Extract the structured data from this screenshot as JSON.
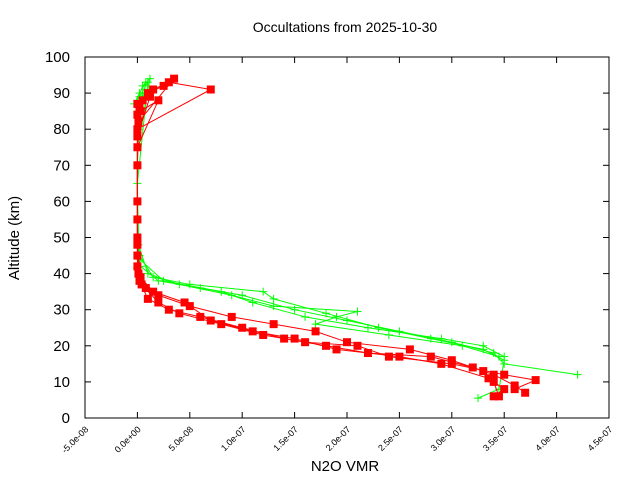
{
  "chart_data": {
    "type": "line",
    "title": "Occultations from 2025-10-30",
    "xlabel": "N2O VMR",
    "ylabel": "Altitude (km)",
    "xlim": [
      -5e-08,
      4.5e-07
    ],
    "ylim": [
      0,
      100
    ],
    "grid": false,
    "legend": "none",
    "x_tick_labels": [
      "-5.0e-08",
      "0.0e+00",
      "5.0e-08",
      "1.0e-07",
      "1.5e-07",
      "2.0e-07",
      "2.5e-07",
      "3.0e-07",
      "3.5e-07",
      "4.0e-07",
      "4.5e-07"
    ],
    "x_ticks": [
      -5e-08,
      0,
      5e-08,
      1e-07,
      1.5e-07,
      2e-07,
      2.5e-07,
      3e-07,
      3.5e-07,
      4e-07,
      4.5e-07
    ],
    "y_ticks": [
      0,
      10,
      20,
      30,
      40,
      50,
      60,
      70,
      80,
      90,
      100
    ],
    "y_tick_labels": [
      "0",
      "10",
      "20",
      "30",
      "40",
      "50",
      "60",
      "70",
      "80",
      "90",
      "100"
    ],
    "series": [
      {
        "color": "#00ff00",
        "marker": "plus",
        "profiles": [
          [
            [
              -3e-09,
              87
            ],
            [
              2e-09,
              90
            ],
            [
              8e-09,
              93
            ],
            [
              1e-09,
              80
            ],
            [
              0,
              70
            ],
            [
              0,
              60
            ],
            [
              0,
              50
            ],
            [
              3e-09,
              42
            ],
            [
              2e-08,
              38
            ],
            [
              6e-08,
              36
            ],
            [
              1e-07,
              34
            ],
            [
              1.5e-07,
              30
            ],
            [
              2e-07,
              27
            ],
            [
              2.5e-07,
              24
            ],
            [
              3e-07,
              21
            ],
            [
              3.4e-07,
              18
            ],
            [
              3.5e-07,
              15
            ],
            [
              4.2e-07,
              12
            ]
          ],
          [
            [
              0,
              88
            ],
            [
              5e-09,
              92
            ],
            [
              1.2e-08,
              94
            ],
            [
              0,
              75
            ],
            [
              0,
              55
            ],
            [
              2e-09,
              45
            ],
            [
              1.5e-08,
              39
            ],
            [
              5e-08,
              37
            ],
            [
              1.2e-07,
              35
            ],
            [
              1.3e-07,
              33
            ],
            [
              1.8e-07,
              29
            ],
            [
              2.3e-07,
              25
            ],
            [
              2.8e-07,
              22
            ],
            [
              3.3e-07,
              19
            ],
            [
              3.5e-07,
              16
            ],
            [
              3.45e-07,
              8
            ],
            [
              3.25e-07,
              5.5
            ]
          ],
          [
            [
              2e-09,
              89
            ],
            [
              1e-08,
              93
            ],
            [
              0,
              65
            ],
            [
              1e-09,
              48
            ],
            [
              1e-08,
              40
            ],
            [
              4e-08,
              37
            ],
            [
              9e-08,
              34
            ],
            [
              1.3e-07,
              31
            ],
            [
              2.1e-07,
              29.5
            ],
            [
              1.9e-07,
              28
            ],
            [
              1.7e-07,
              26
            ],
            [
              2.4e-07,
              23
            ],
            [
              3.1e-07,
              20
            ],
            [
              3.45e-07,
              17
            ]
          ],
          [
            [
              5e-09,
              90
            ],
            [
              0,
              85
            ],
            [
              0,
              60
            ],
            [
              2e-09,
              44
            ],
            [
              2.5e-08,
              38
            ],
            [
              8e-08,
              35
            ],
            [
              1.1e-07,
              32
            ],
            [
              1.6e-07,
              28
            ],
            [
              2.2e-07,
              25
            ],
            [
              2.9e-07,
              22
            ],
            [
              3.3e-07,
              20
            ],
            [
              3.5e-07,
              17
            ]
          ]
        ]
      },
      {
        "color": "#ff0000",
        "marker": "square",
        "profiles": [
          [
            [
              0,
              84
            ],
            [
              5e-09,
              88
            ],
            [
              1.5e-08,
              91
            ],
            [
              3e-08,
              93
            ],
            [
              7e-08,
              91
            ],
            [
              0,
              80
            ],
            [
              0,
              60
            ],
            [
              0,
              45
            ],
            [
              2e-09,
              38
            ],
            [
              1e-08,
              33
            ],
            [
              3e-08,
              30
            ],
            [
              6e-08,
              28
            ],
            [
              1e-07,
              25
            ],
            [
              1.4e-07,
              22
            ],
            [
              1.8e-07,
              20
            ],
            [
              2.2e-07,
              18
            ],
            [
              2.8e-07,
              17
            ],
            [
              3.2e-07,
              14
            ],
            [
              3.4e-07,
              12
            ],
            [
              3.6e-07,
              9
            ],
            [
              3.7e-07,
              7
            ]
          ],
          [
            [
              2e-09,
              86
            ],
            [
              1e-08,
              90
            ],
            [
              2.5e-08,
              92
            ],
            [
              3.5e-08,
              94
            ],
            [
              1e-09,
              82
            ],
            [
              0,
              70
            ],
            [
              0,
              50
            ],
            [
              1e-09,
              40
            ],
            [
              8e-09,
              36
            ],
            [
              2e-08,
              34
            ],
            [
              5e-08,
              31
            ],
            [
              9e-08,
              28
            ],
            [
              1.3e-07,
              26
            ],
            [
              1.7e-07,
              24
            ],
            [
              2e-07,
              21
            ],
            [
              2.6e-07,
              19
            ],
            [
              3e-07,
              16
            ],
            [
              3.3e-07,
              13
            ],
            [
              3.4e-07,
              10
            ],
            [
              3.45e-07,
              6
            ]
          ],
          [
            [
              0,
              87
            ],
            [
              1.2e-08,
              89
            ],
            [
              0,
              78
            ],
            [
              0,
              55
            ],
            [
              0,
              42
            ],
            [
              4e-09,
              37
            ],
            [
              2e-08,
              32
            ],
            [
              4e-08,
              29
            ],
            [
              8e-08,
              26
            ],
            [
              1.2e-07,
              23
            ],
            [
              1.6e-07,
              21
            ],
            [
              2.1e-07,
              20
            ],
            [
              2.4e-07,
              17
            ],
            [
              3e-07,
              15
            ],
            [
              3.5e-07,
              12
            ],
            [
              3.8e-07,
              10.5
            ],
            [
              3.6e-07,
              8
            ]
          ],
          [
            [
              3e-09,
              85
            ],
            [
              2e-08,
              88
            ],
            [
              0,
              75
            ],
            [
              0,
              48
            ],
            [
              3e-09,
              39
            ],
            [
              1.5e-08,
              35
            ],
            [
              4.5e-08,
              32
            ],
            [
              7e-08,
              27
            ],
            [
              1.1e-07,
              24
            ],
            [
              1.5e-07,
              22
            ],
            [
              1.9e-07,
              19
            ],
            [
              2.5e-07,
              17
            ],
            [
              2.9e-07,
              15
            ],
            [
              3.35e-07,
              11
            ],
            [
              3.5e-07,
              8
            ],
            [
              3.4e-07,
              6
            ]
          ]
        ]
      }
    ]
  }
}
